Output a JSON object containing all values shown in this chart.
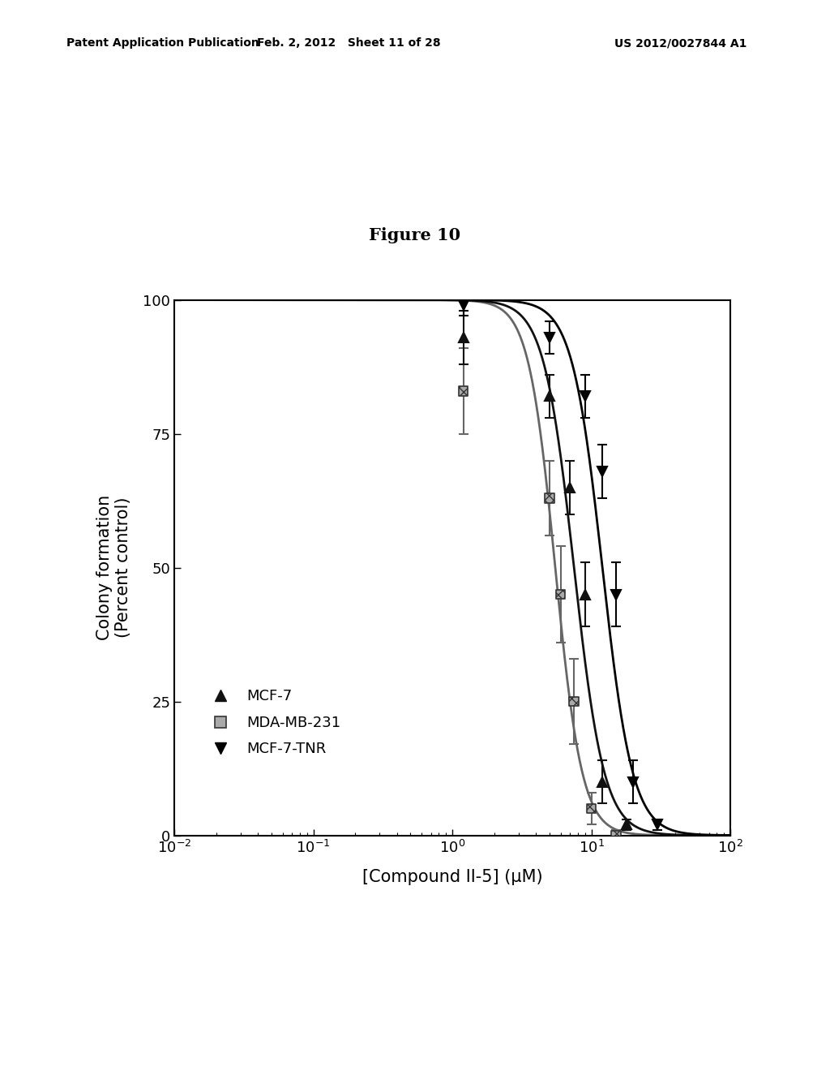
{
  "patent_header_left": "Patent Application Publication",
  "patent_header_mid": "Feb. 2, 2012   Sheet 11 of 28",
  "patent_header_right": "US 2012/0027844 A1",
  "figure_title": "Figure 10",
  "xlabel": "[Compound II-5] (μM)",
  "ylabel": "Colony formation\n(Percent control)",
  "background_color": "#ffffff",
  "title_fontsize": 15,
  "label_fontsize": 15,
  "tick_fontsize": 13,
  "legend_fontsize": 13,
  "header_fontsize": 10,
  "series": [
    {
      "label": "MCF-7",
      "marker": "^",
      "color": "#111111",
      "ec50": 7.5,
      "hill": 4.0,
      "data_x": [
        1.2,
        5.0,
        7.0,
        9.0,
        12.0,
        18.0
      ],
      "data_y": [
        93,
        82,
        65,
        45,
        10,
        2
      ],
      "data_yerr": [
        5,
        4,
        5,
        6,
        4,
        1
      ],
      "lw": 2.0
    },
    {
      "label": "MDA-MB-231",
      "marker": "s",
      "color": "#666666",
      "ec50": 5.5,
      "hill": 4.5,
      "data_x": [
        1.2,
        5.0,
        6.0,
        7.5,
        10.0,
        15.0
      ],
      "data_y": [
        83,
        63,
        45,
        25,
        5,
        0
      ],
      "data_yerr": [
        8,
        7,
        9,
        8,
        3,
        1
      ],
      "lw": 2.0
    },
    {
      "label": "MCF-7-TNR",
      "marker": "v",
      "color": "#000000",
      "ec50": 12.0,
      "hill": 4.0,
      "data_x": [
        1.2,
        5.0,
        9.0,
        12.0,
        15.0,
        20.0,
        30.0
      ],
      "data_y": [
        99,
        93,
        82,
        68,
        45,
        10,
        2
      ],
      "data_yerr": [
        2,
        3,
        4,
        5,
        6,
        4,
        1
      ],
      "lw": 2.0
    }
  ]
}
